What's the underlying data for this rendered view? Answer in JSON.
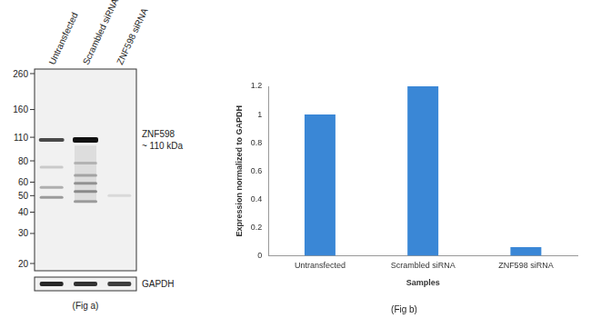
{
  "figure_a": {
    "title": "(Fig a)",
    "lanes": [
      "Untransfected",
      "Scrambled siRNA",
      "ZNF598 siRNA"
    ],
    "markers": [
      260,
      160,
      110,
      80,
      60,
      50,
      40,
      30,
      20
    ],
    "target": "ZNF598",
    "target_size": "~ 110 kDa",
    "loading_control": "GAPDH"
  },
  "chart_data": {
    "type": "bar",
    "title": "(Fig b)",
    "categories": [
      "Untransfected",
      "Scrambled siRNA",
      "ZNF598 siRNA"
    ],
    "values": [
      1,
      1.2,
      0.06
    ],
    "color": "#3a87d6",
    "xlabel": "Samples",
    "ylabel": "Expression normalized to GAPDH",
    "ylim": [
      0,
      1.2
    ],
    "yticks": [
      0,
      0.2,
      0.4,
      0.6,
      0.8,
      1,
      1.2
    ],
    "grid": false
  }
}
